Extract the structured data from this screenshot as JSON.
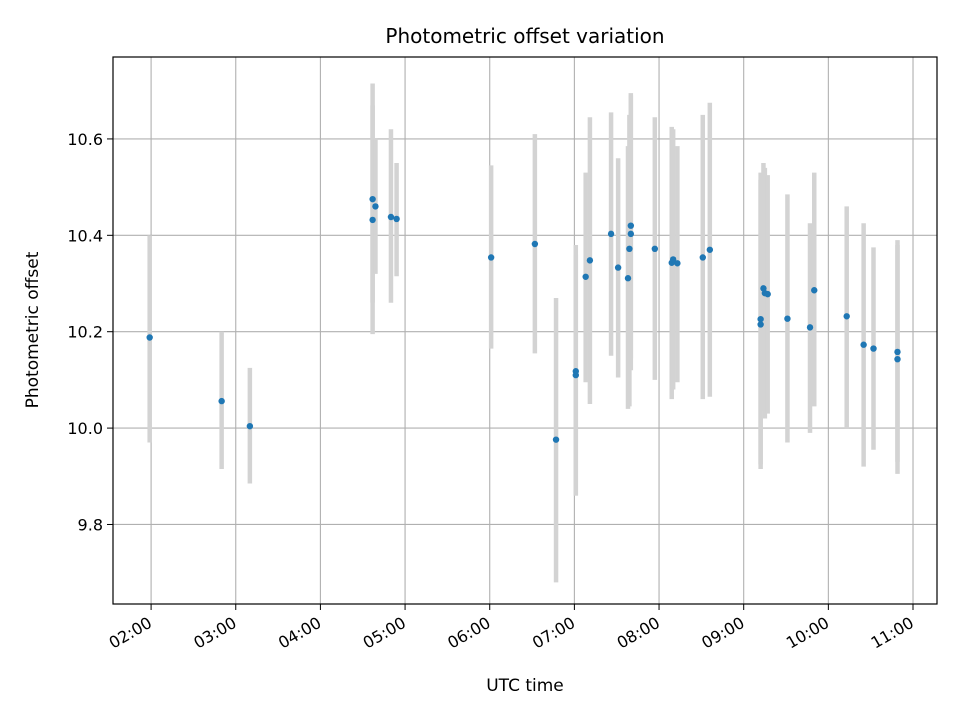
{
  "chart_data": {
    "type": "scatter",
    "title": "Photometric offset variation",
    "xlabel": "UTC time",
    "ylabel": "Photometric offset",
    "xlim": [
      "01:33",
      "11:17"
    ],
    "ylim": [
      9.635,
      10.77
    ],
    "x_ticks": [
      "02:00",
      "03:00",
      "04:00",
      "05:00",
      "06:00",
      "07:00",
      "08:00",
      "09:00",
      "10:00",
      "11:00"
    ],
    "y_ticks": [
      9.8,
      10.0,
      10.2,
      10.4,
      10.6
    ],
    "grid": true,
    "colors": {
      "point": "#1f77b4",
      "errorbar": "#d3d3d3",
      "grid": "#b0b0b0"
    },
    "points": [
      {
        "x": "01:59",
        "y": 10.188,
        "y_low": 9.97,
        "y_high": 10.4
      },
      {
        "x": "02:50",
        "y": 10.056,
        "y_low": 9.915,
        "y_high": 10.2
      },
      {
        "x": "03:10",
        "y": 10.004,
        "y_low": 9.885,
        "y_high": 10.125
      },
      {
        "x": "04:37",
        "y": 10.475,
        "y_low": 10.26,
        "y_high": 10.715
      },
      {
        "x": "04:37",
        "y": 10.432,
        "y_low": 10.195,
        "y_high": 10.67
      },
      {
        "x": "04:39",
        "y": 10.46,
        "y_low": 10.32,
        "y_high": 10.6
      },
      {
        "x": "04:50",
        "y": 10.438,
        "y_low": 10.26,
        "y_high": 10.62
      },
      {
        "x": "04:54",
        "y": 10.434,
        "y_low": 10.315,
        "y_high": 10.55
      },
      {
        "x": "06:01",
        "y": 10.354,
        "y_low": 10.165,
        "y_high": 10.545
      },
      {
        "x": "06:32",
        "y": 10.382,
        "y_low": 10.155,
        "y_high": 10.61
      },
      {
        "x": "06:47",
        "y": 9.976,
        "y_low": 9.68,
        "y_high": 10.27
      },
      {
        "x": "07:01",
        "y": 10.118,
        "y_low": 9.86,
        "y_high": 10.38
      },
      {
        "x": "07:01",
        "y": 10.11,
        "y_low": 9.86,
        "y_high": 10.36
      },
      {
        "x": "07:08",
        "y": 10.314,
        "y_low": 10.095,
        "y_high": 10.53
      },
      {
        "x": "07:11",
        "y": 10.348,
        "y_low": 10.05,
        "y_high": 10.645
      },
      {
        "x": "07:26",
        "y": 10.403,
        "y_low": 10.15,
        "y_high": 10.655
      },
      {
        "x": "07:31",
        "y": 10.333,
        "y_low": 10.105,
        "y_high": 10.56
      },
      {
        "x": "07:38",
        "y": 10.311,
        "y_low": 10.04,
        "y_high": 10.585
      },
      {
        "x": "07:39",
        "y": 10.372,
        "y_low": 10.045,
        "y_high": 10.65
      },
      {
        "x": "07:40",
        "y": 10.42,
        "y_low": 10.145,
        "y_high": 10.695
      },
      {
        "x": "07:40",
        "y": 10.403,
        "y_low": 10.12,
        "y_high": 10.69
      },
      {
        "x": "07:57",
        "y": 10.372,
        "y_low": 10.1,
        "y_high": 10.645
      },
      {
        "x": "08:09",
        "y": 10.343,
        "y_low": 10.06,
        "y_high": 10.625
      },
      {
        "x": "08:10",
        "y": 10.35,
        "y_low": 10.08,
        "y_high": 10.62
      },
      {
        "x": "08:13",
        "y": 10.342,
        "y_low": 10.095,
        "y_high": 10.585
      },
      {
        "x": "08:31",
        "y": 10.354,
        "y_low": 10.06,
        "y_high": 10.65
      },
      {
        "x": "08:36",
        "y": 10.37,
        "y_low": 10.065,
        "y_high": 10.675
      },
      {
        "x": "09:12",
        "y": 10.226,
        "y_low": 9.925,
        "y_high": 10.53
      },
      {
        "x": "09:12",
        "y": 10.215,
        "y_low": 9.915,
        "y_high": 10.515
      },
      {
        "x": "09:14",
        "y": 10.29,
        "y_low": 10.035,
        "y_high": 10.55
      },
      {
        "x": "09:15",
        "y": 10.28,
        "y_low": 10.02,
        "y_high": 10.54
      },
      {
        "x": "09:17",
        "y": 10.278,
        "y_low": 10.03,
        "y_high": 10.525
      },
      {
        "x": "09:31",
        "y": 10.227,
        "y_low": 9.97,
        "y_high": 10.485
      },
      {
        "x": "09:47",
        "y": 10.209,
        "y_low": 9.99,
        "y_high": 10.425
      },
      {
        "x": "09:50",
        "y": 10.286,
        "y_low": 10.045,
        "y_high": 10.53
      },
      {
        "x": "10:13",
        "y": 10.232,
        "y_low": 10.0,
        "y_high": 10.46
      },
      {
        "x": "10:25",
        "y": 10.173,
        "y_low": 9.92,
        "y_high": 10.425
      },
      {
        "x": "10:32",
        "y": 10.165,
        "y_low": 9.955,
        "y_high": 10.375
      },
      {
        "x": "10:49",
        "y": 10.158,
        "y_low": 9.93,
        "y_high": 10.39
      },
      {
        "x": "10:49",
        "y": 10.143,
        "y_low": 9.905,
        "y_high": 10.38
      }
    ]
  }
}
